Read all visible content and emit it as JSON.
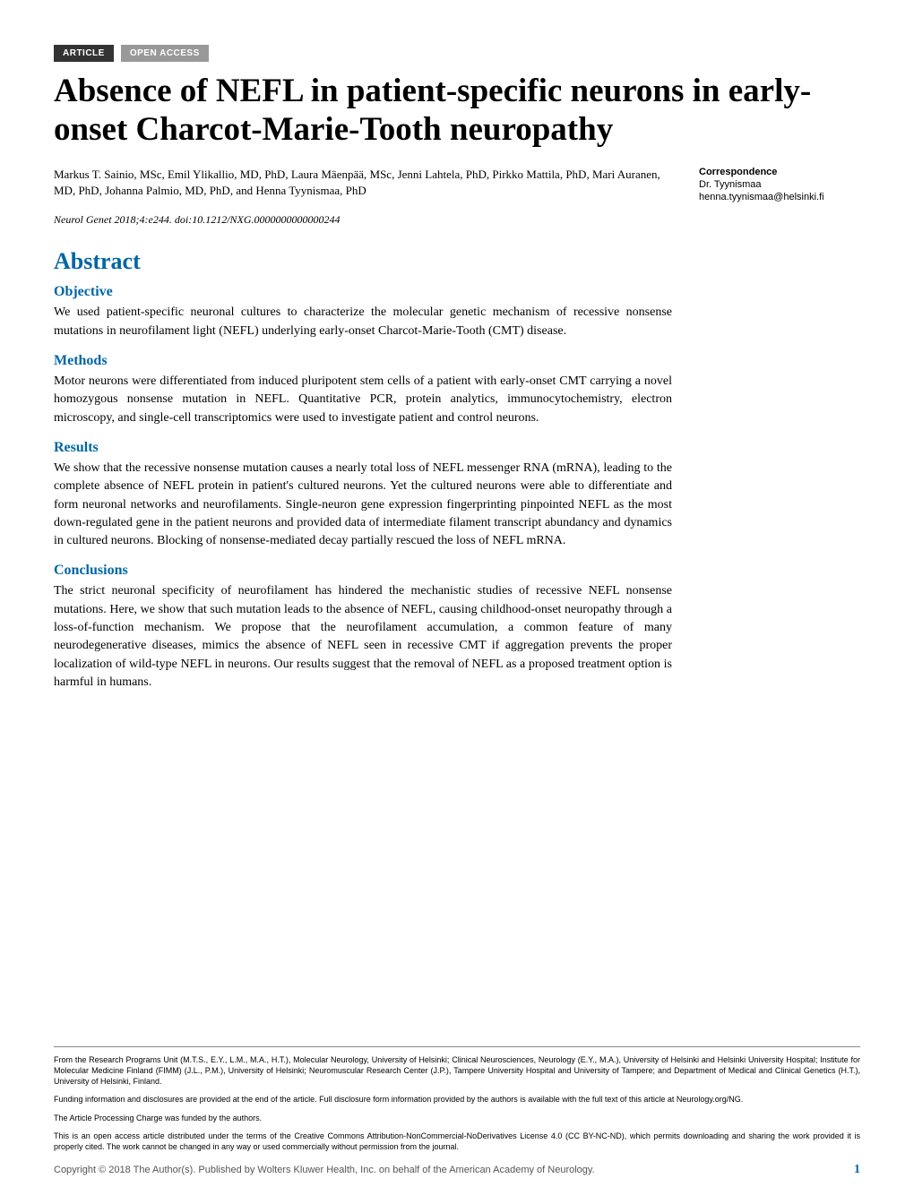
{
  "badges": {
    "article": "ARTICLE",
    "open_access": "OPEN ACCESS"
  },
  "title": "Absence of NEFL in patient-specific neurons in early-onset Charcot-Marie-Tooth neuropathy",
  "authors": "Markus T. Sainio, MSc, Emil Ylikallio, MD, PhD, Laura Mäenpää, MSc, Jenni Lahtela, PhD, Pirkko Mattila, PhD, Mari Auranen, MD, PhD, Johanna Palmio, MD, PhD, and Henna Tyynismaa, PhD",
  "citation": "Neurol Genet 2018;4:e244. doi:10.1212/NXG.0000000000000244",
  "correspondence": {
    "label": "Correspondence",
    "name": "Dr. Tyynismaa",
    "email": "henna.tyynismaa@helsinki.fi"
  },
  "abstract_heading": "Abstract",
  "sections": {
    "objective": {
      "heading": "Objective",
      "text": "We used patient-specific neuronal cultures to characterize the molecular genetic mechanism of recessive nonsense mutations in neurofilament light (NEFL) underlying early-onset Charcot-Marie-Tooth (CMT) disease."
    },
    "methods": {
      "heading": "Methods",
      "text": "Motor neurons were differentiated from induced pluripotent stem cells of a patient with early-onset CMT carrying a novel homozygous nonsense mutation in NEFL. Quantitative PCR, protein analytics, immunocytochemistry, electron microscopy, and single-cell transcriptomics were used to investigate patient and control neurons."
    },
    "results": {
      "heading": "Results",
      "text": "We show that the recessive nonsense mutation causes a nearly total loss of NEFL messenger RNA (mRNA), leading to the complete absence of NEFL protein in patient's cultured neurons. Yet the cultured neurons were able to differentiate and form neuronal networks and neurofilaments. Single-neuron gene expression fingerprinting pinpointed NEFL as the most down-regulated gene in the patient neurons and provided data of intermediate filament transcript abundancy and dynamics in cultured neurons. Blocking of nonsense-mediated decay partially rescued the loss of NEFL mRNA."
    },
    "conclusions": {
      "heading": "Conclusions",
      "text": "The strict neuronal specificity of neurofilament has hindered the mechanistic studies of recessive NEFL nonsense mutations. Here, we show that such mutation leads to the absence of NEFL, causing childhood-onset neuropathy through a loss-of-function mechanism. We propose that the neurofilament accumulation, a common feature of many neurodegenerative diseases, mimics the absence of NEFL seen in recessive CMT if aggregation prevents the proper localization of wild-type NEFL in neurons. Our results suggest that the removal of NEFL as a proposed treatment option is harmful in humans."
    }
  },
  "footer": {
    "affiliations": "From the Research Programs Unit (M.T.S., E.Y., L.M., M.A., H.T.), Molecular Neurology, University of Helsinki; Clinical Neurosciences, Neurology (E.Y., M.A.), University of Helsinki and Helsinki University Hospital; Institute for Molecular Medicine Finland (FIMM) (J.L., P.M.), University of Helsinki; Neuromuscular Research Center (J.P.), Tampere University Hospital and University of Tampere; and Department of Medical and Clinical Genetics (H.T.), University of Helsinki, Finland.",
    "funding": "Funding information and disclosures are provided at the end of the article. Full disclosure form information provided by the authors is available with the full text of this article at Neurology.org/NG.",
    "processing": "The Article Processing Charge was funded by the authors.",
    "license": "This is an open access article distributed under the terms of the Creative Commons Attribution-NonCommercial-NoDerivatives License 4.0 (CC BY-NC-ND), which permits downloading and sharing the work provided it is properly cited. The work cannot be changed in any way or used commercially without permission from the journal.",
    "copyright": "Copyright © 2018 The Author(s). Published by Wolters Kluwer Health, Inc. on behalf of the American Academy of Neurology.",
    "page_number": "1"
  },
  "colors": {
    "heading_blue": "#0066a4",
    "badge_dark": "#333333",
    "badge_light": "#999999",
    "text_black": "#000000",
    "copyright_gray": "#555555",
    "divider_gray": "#888888",
    "background": "#ffffff"
  },
  "typography": {
    "title_size": 37,
    "abstract_heading_size": 26,
    "section_heading_size": 16,
    "body_size": 14,
    "author_size": 13,
    "citation_size": 12,
    "correspondence_size": 11,
    "footer_size": 9
  }
}
